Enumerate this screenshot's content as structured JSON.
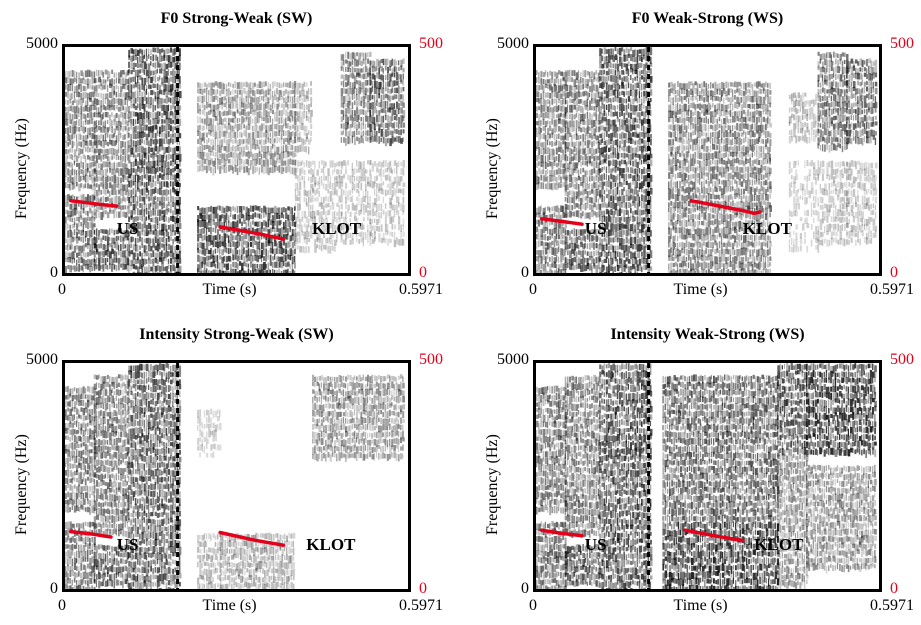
{
  "colors": {
    "f0_line": "#e3001b",
    "right_axis": "#e3001b",
    "spectrogram": "#000000"
  },
  "chart_data": [
    {
      "type": "line",
      "title": "F0 Strong-Weak (SW)",
      "xlabel": "Time (s)",
      "ylabel": "Frequency (Hz)",
      "x_ticks": [
        "0",
        "0.5971"
      ],
      "y_ticks_left": [
        "0",
        "5000"
      ],
      "y_ticks_right": [
        "0",
        "500"
      ],
      "xlim": [
        0,
        0.5971
      ],
      "ylim_left": [
        0,
        5000
      ],
      "ylim_right": [
        0,
        500
      ],
      "word_boundary": 0.196,
      "annotations": [
        {
          "text": "US",
          "x": 0.09,
          "y": 1000
        },
        {
          "text": "KLOT",
          "x": 0.43,
          "y": 1000
        }
      ],
      "series": [
        {
          "x": [
            0.01,
            0.06,
            0.09
          ],
          "y": [
            160,
            152,
            148
          ]
        },
        {
          "x": [
            0.27,
            0.34,
            0.38
          ],
          "y": [
            102,
            86,
            75
          ]
        }
      ],
      "spectrogram": {
        "segments": [
          {
            "x": [
              0.0,
              0.05
            ],
            "bands": [
              [
                0.02,
                0.35,
                0.6
              ],
              [
                0.4,
                0.9,
                0.55
              ]
            ]
          },
          {
            "x": [
              0.05,
              0.11
            ],
            "bands": [
              [
                0.02,
                0.2,
                0.75
              ],
              [
                0.25,
                0.9,
                0.55
              ]
            ]
          },
          {
            "x": [
              0.11,
              0.2
            ],
            "bands": [
              [
                0.0,
                1.0,
                0.75
              ]
            ]
          },
          {
            "x": [
              0.23,
              0.4
            ],
            "bands": [
              [
                0.02,
                0.3,
                0.8
              ],
              [
                0.45,
                0.85,
                0.45
              ]
            ]
          },
          {
            "x": [
              0.4,
              0.43
            ],
            "bands": [
              [
                0.1,
                0.5,
                0.25
              ],
              [
                0.55,
                0.85,
                0.3
              ]
            ]
          },
          {
            "x": [
              0.43,
              0.48
            ],
            "bands": [
              [
                0.1,
                0.5,
                0.25
              ]
            ]
          },
          {
            "x": [
              0.48,
              0.53
            ],
            "bands": [
              [
                0.15,
                0.5,
                0.25
              ],
              [
                0.6,
                0.98,
                0.55
              ]
            ]
          },
          {
            "x": [
              0.53,
              0.59
            ],
            "bands": [
              [
                0.15,
                0.5,
                0.25
              ],
              [
                0.6,
                0.95,
                0.7
              ]
            ]
          }
        ]
      }
    },
    {
      "type": "line",
      "title": "F0 Weak-Strong (WS)",
      "xlabel": "Time (s)",
      "ylabel": "Frequency (Hz)",
      "x_ticks": [
        "0",
        "0.5971"
      ],
      "y_ticks_left": [
        "0",
        "5000"
      ],
      "y_ticks_right": [
        "0",
        "500"
      ],
      "xlim": [
        0,
        0.5971
      ],
      "ylim_left": [
        0,
        5000
      ],
      "ylim_right": [
        0,
        500
      ],
      "word_boundary": 0.196,
      "annotations": [
        {
          "text": "US",
          "x": 0.085,
          "y": 1000
        },
        {
          "text": "KLOT",
          "x": 0.36,
          "y": 1000
        }
      ],
      "series": [
        {
          "x": [
            0.01,
            0.04,
            0.08
          ],
          "y": [
            120,
            115,
            108
          ]
        },
        {
          "x": [
            0.27,
            0.32,
            0.36,
            0.38,
            0.39
          ],
          "y": [
            160,
            148,
            138,
            132,
            135
          ]
        }
      ],
      "spectrogram": {
        "segments": [
          {
            "x": [
              0.0,
              0.05
            ],
            "bands": [
              [
                0.02,
                0.3,
                0.6
              ],
              [
                0.4,
                0.9,
                0.55
              ]
            ]
          },
          {
            "x": [
              0.05,
              0.11
            ],
            "bands": [
              [
                0.02,
                0.2,
                0.7
              ],
              [
                0.25,
                0.9,
                0.55
              ]
            ]
          },
          {
            "x": [
              0.11,
              0.2
            ],
            "bands": [
              [
                0.0,
                1.0,
                0.75
              ]
            ]
          },
          {
            "x": [
              0.23,
              0.41
            ],
            "bands": [
              [
                0.02,
                0.3,
                0.55
              ],
              [
                0.3,
                0.85,
                0.55
              ]
            ]
          },
          {
            "x": [
              0.44,
              0.49
            ],
            "bands": [
              [
                0.1,
                0.5,
                0.2
              ],
              [
                0.6,
                0.8,
                0.3
              ]
            ]
          },
          {
            "x": [
              0.49,
              0.54
            ],
            "bands": [
              [
                0.15,
                0.5,
                0.25
              ],
              [
                0.55,
                0.98,
                0.6
              ]
            ]
          },
          {
            "x": [
              0.54,
              0.59
            ],
            "bands": [
              [
                0.15,
                0.5,
                0.25
              ],
              [
                0.6,
                0.95,
                0.65
              ]
            ]
          }
        ]
      }
    },
    {
      "type": "line",
      "title": "Intensity Strong-Weak (SW)",
      "xlabel": "Time (s)",
      "ylabel": "Frequency (Hz)",
      "x_ticks": [
        "0",
        "0.5971"
      ],
      "y_ticks_left": [
        "0",
        "5000"
      ],
      "y_ticks_right": [
        "0",
        "500"
      ],
      "xlim": [
        0,
        0.5971
      ],
      "ylim_left": [
        0,
        5000
      ],
      "ylim_right": [
        0,
        500
      ],
      "word_boundary": 0.196,
      "annotations": [
        {
          "text": "US",
          "x": 0.09,
          "y": 1000
        },
        {
          "text": "KLOT",
          "x": 0.42,
          "y": 1000
        }
      ],
      "series": [
        {
          "x": [
            0.01,
            0.05,
            0.08
          ],
          "y": [
            127,
            121,
            115
          ]
        },
        {
          "x": [
            0.27,
            0.33,
            0.38
          ],
          "y": [
            125,
            108,
            97
          ]
        }
      ],
      "spectrogram": {
        "segments": [
          {
            "x": [
              0.0,
              0.05
            ],
            "bands": [
              [
                0.02,
                0.3,
                0.6
              ],
              [
                0.35,
                0.9,
                0.55
              ]
            ]
          },
          {
            "x": [
              0.05,
              0.11
            ],
            "bands": [
              [
                0.02,
                0.2,
                0.7
              ],
              [
                0.25,
                0.95,
                0.55
              ]
            ]
          },
          {
            "x": [
              0.11,
              0.2
            ],
            "bands": [
              [
                0.0,
                1.0,
                0.7
              ]
            ]
          },
          {
            "x": [
              0.23,
              0.27
            ],
            "bands": [
              [
                0.02,
                0.25,
                0.3
              ],
              [
                0.6,
                0.8,
                0.2
              ]
            ]
          },
          {
            "x": [
              0.27,
              0.4
            ],
            "bands": [
              [
                0.02,
                0.25,
                0.35
              ]
            ]
          },
          {
            "x": [
              0.43,
              0.59
            ],
            "bands": [
              [
                0.6,
                0.95,
                0.45
              ]
            ]
          }
        ]
      }
    },
    {
      "type": "line",
      "title": "Intensity Weak-Strong (WS)",
      "xlabel": "Time (s)",
      "ylabel": "Frequency (Hz)",
      "x_ticks": [
        "0",
        "0.5971"
      ],
      "y_ticks_left": [
        "0",
        "5000"
      ],
      "y_ticks_right": [
        "0",
        "500"
      ],
      "xlim": [
        0,
        0.5971
      ],
      "ylim_left": [
        0,
        5000
      ],
      "ylim_right": [
        0,
        500
      ],
      "word_boundary": 0.196,
      "annotations": [
        {
          "text": "US",
          "x": 0.085,
          "y": 1000
        },
        {
          "text": "KLOT",
          "x": 0.38,
          "y": 1000
        }
      ],
      "series": [
        {
          "x": [
            0.01,
            0.04,
            0.08
          ],
          "y": [
            130,
            124,
            118
          ]
        },
        {
          "x": [
            0.26,
            0.31,
            0.36
          ],
          "y": [
            130,
            118,
            107
          ]
        }
      ],
      "spectrogram": {
        "segments": [
          {
            "x": [
              0.0,
              0.05
            ],
            "bands": [
              [
                0.02,
                0.3,
                0.6
              ],
              [
                0.35,
                0.9,
                0.55
              ]
            ]
          },
          {
            "x": [
              0.05,
              0.11
            ],
            "bands": [
              [
                0.02,
                0.2,
                0.7
              ],
              [
                0.25,
                0.95,
                0.55
              ]
            ]
          },
          {
            "x": [
              0.11,
              0.2
            ],
            "bands": [
              [
                0.0,
                1.0,
                0.75
              ]
            ]
          },
          {
            "x": [
              0.22,
              0.42
            ],
            "bands": [
              [
                0.02,
                0.3,
                0.85
              ],
              [
                0.3,
                0.95,
                0.65
              ]
            ]
          },
          {
            "x": [
              0.42,
              0.47
            ],
            "bands": [
              [
                0.02,
                0.6,
                0.45
              ],
              [
                0.6,
                1.0,
                0.75
              ]
            ]
          },
          {
            "x": [
              0.47,
              0.59
            ],
            "bands": [
              [
                0.1,
                0.55,
                0.45
              ],
              [
                0.6,
                1.0,
                0.85
              ]
            ]
          }
        ]
      }
    }
  ]
}
